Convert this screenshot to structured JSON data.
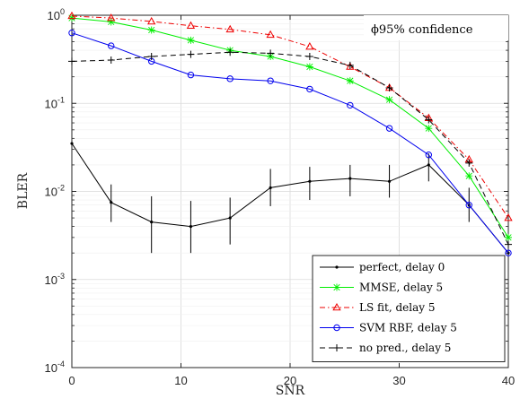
{
  "chart_data": {
    "type": "line",
    "xlabel": "SNR",
    "ylabel": "BLER",
    "xlim": [
      0,
      40
    ],
    "ylim": [
      0.0001,
      1
    ],
    "yscale": "log",
    "grid": true,
    "legend_position": "bottom-right",
    "annotation": "ϕ95% confidence",
    "x_ticks": [
      "0",
      "10",
      "20",
      "30",
      "40"
    ],
    "y_ticks": [
      {
        "base": "10",
        "exp": "-4",
        "value": 0.0001
      },
      {
        "base": "10",
        "exp": "-3",
        "value": 0.001
      },
      {
        "base": "10",
        "exp": "-2",
        "value": 0.01
      },
      {
        "base": "10",
        "exp": "-1",
        "value": 0.1
      },
      {
        "base": "10",
        "exp": "0",
        "value": 1
      }
    ],
    "x": [
      0,
      3.6,
      7.3,
      10.9,
      14.5,
      18.2,
      21.8,
      25.5,
      29.1,
      32.7,
      36.4,
      40
    ],
    "series": [
      {
        "name": "perfect, delay 0",
        "color": "#000000",
        "dash": "solid",
        "marker": "dot",
        "values": [
          0.035,
          0.0075,
          0.0045,
          0.004,
          0.005,
          0.011,
          0.013,
          0.014,
          0.013,
          0.02,
          0.007,
          0.002
        ],
        "error_low": [
          null,
          0.0045,
          0.002,
          0.002,
          0.0025,
          0.0068,
          0.008,
          0.0088,
          0.0085,
          0.013,
          0.0045,
          null
        ],
        "error_high": [
          null,
          0.012,
          0.0088,
          0.0078,
          0.0085,
          0.018,
          0.019,
          0.02,
          0.02,
          0.027,
          0.011,
          null
        ]
      },
      {
        "name": "MMSE, delay 5",
        "color": "#00ee00",
        "dash": "solid",
        "marker": "star",
        "values": [
          0.93,
          0.84,
          0.68,
          0.52,
          0.4,
          0.34,
          0.26,
          0.18,
          0.11,
          0.052,
          0.015,
          0.003
        ]
      },
      {
        "name": "LS fit, delay 5",
        "color": "#ee0000",
        "dash": "dashdot",
        "marker": "triangle",
        "values": [
          0.98,
          0.93,
          0.85,
          0.76,
          0.69,
          0.6,
          0.44,
          0.26,
          0.15,
          0.068,
          0.023,
          0.005
        ]
      },
      {
        "name": "SVM RBF, delay 5",
        "color": "#0000ee",
        "dash": "solid",
        "marker": "circle",
        "values": [
          0.63,
          0.45,
          0.3,
          0.21,
          0.19,
          0.18,
          0.145,
          0.095,
          0.052,
          0.026,
          0.007,
          0.002
        ]
      },
      {
        "name": "no pred., delay 5",
        "color": "#000000",
        "dash": "dashed",
        "marker": "plus",
        "values": [
          0.3,
          0.31,
          0.34,
          0.36,
          0.38,
          0.37,
          0.34,
          0.27,
          0.15,
          0.065,
          0.021,
          0.0025
        ]
      }
    ]
  }
}
